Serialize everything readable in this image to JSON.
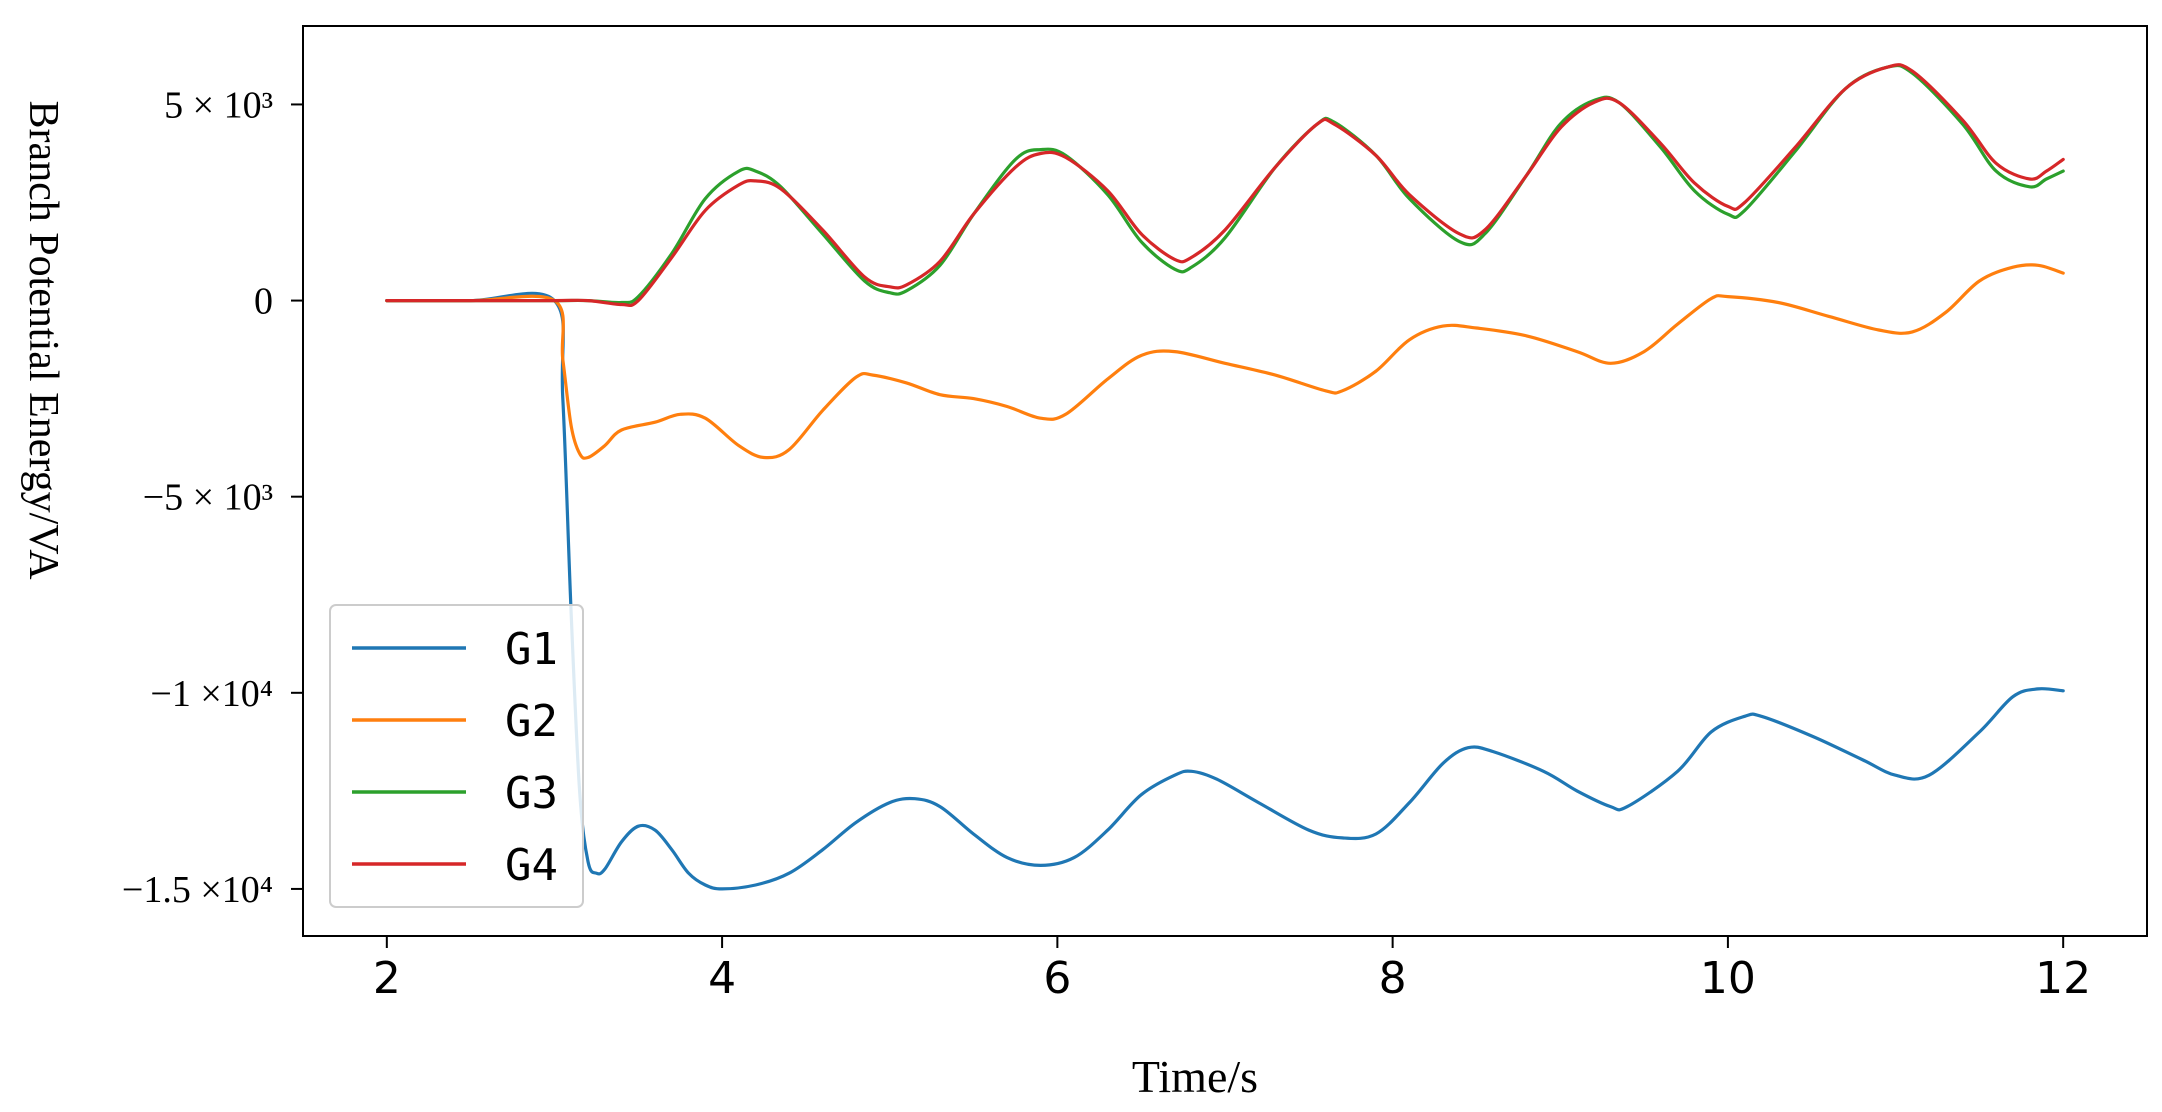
{
  "chart_data": {
    "type": "line",
    "title": "",
    "xlabel": "Time/s",
    "ylabel": "Branch Potential Energy/VA",
    "xlim": [
      1.5,
      12.5
    ],
    "ylim": [
      -16200,
      7000
    ],
    "xticks": [
      {
        "value": 2,
        "label": "2"
      },
      {
        "value": 4,
        "label": "4"
      },
      {
        "value": 6,
        "label": "6"
      },
      {
        "value": 8,
        "label": "8"
      },
      {
        "value": 10,
        "label": "10"
      },
      {
        "value": 12,
        "label": "12"
      }
    ],
    "yticks": [
      {
        "value": 5000,
        "label": "5 × 10³"
      },
      {
        "value": 0,
        "label": "0"
      },
      {
        "value": -5000,
        "label": "−5 × 10³"
      },
      {
        "value": -10000,
        "label": "−1 ×10⁴"
      },
      {
        "value": -15000,
        "label": "−1.5 ×10⁴"
      }
    ],
    "grid": false,
    "legend_position": "bottom-left",
    "series": [
      {
        "name": "G1",
        "color": "#1f77b4",
        "points": [
          [
            2.0,
            0
          ],
          [
            2.5,
            0
          ],
          [
            3.0,
            0
          ],
          [
            3.05,
            -2500
          ],
          [
            3.1,
            -8000
          ],
          [
            3.15,
            -12500
          ],
          [
            3.2,
            -14300
          ],
          [
            3.25,
            -14600
          ],
          [
            3.3,
            -14500
          ],
          [
            3.4,
            -13800
          ],
          [
            3.5,
            -13400
          ],
          [
            3.6,
            -13500
          ],
          [
            3.7,
            -14000
          ],
          [
            3.8,
            -14600
          ],
          [
            3.9,
            -14900
          ],
          [
            4.0,
            -15000
          ],
          [
            4.2,
            -14900
          ],
          [
            4.4,
            -14600
          ],
          [
            4.6,
            -14000
          ],
          [
            4.8,
            -13300
          ],
          [
            5.0,
            -12800
          ],
          [
            5.15,
            -12700
          ],
          [
            5.3,
            -12900
          ],
          [
            5.5,
            -13600
          ],
          [
            5.7,
            -14200
          ],
          [
            5.9,
            -14400
          ],
          [
            6.1,
            -14200
          ],
          [
            6.3,
            -13500
          ],
          [
            6.5,
            -12600
          ],
          [
            6.7,
            -12100
          ],
          [
            6.8,
            -12000
          ],
          [
            6.95,
            -12200
          ],
          [
            7.2,
            -12800
          ],
          [
            7.5,
            -13500
          ],
          [
            7.7,
            -13700
          ],
          [
            7.9,
            -13600
          ],
          [
            8.1,
            -12800
          ],
          [
            8.3,
            -11800
          ],
          [
            8.45,
            -11400
          ],
          [
            8.6,
            -11500
          ],
          [
            8.9,
            -12000
          ],
          [
            9.1,
            -12500
          ],
          [
            9.3,
            -12900
          ],
          [
            9.4,
            -12900
          ],
          [
            9.7,
            -12000
          ],
          [
            9.9,
            -11000
          ],
          [
            10.1,
            -10600
          ],
          [
            10.2,
            -10600
          ],
          [
            10.5,
            -11100
          ],
          [
            10.8,
            -11700
          ],
          [
            11.0,
            -12100
          ],
          [
            11.2,
            -12100
          ],
          [
            11.5,
            -11000
          ],
          [
            11.7,
            -10100
          ],
          [
            11.85,
            -9900
          ],
          [
            12.0,
            -9950
          ]
        ]
      },
      {
        "name": "G2",
        "color": "#ff7f0e",
        "points": [
          [
            2.0,
            0
          ],
          [
            2.5,
            0
          ],
          [
            3.0,
            0
          ],
          [
            3.05,
            -1500
          ],
          [
            3.1,
            -3200
          ],
          [
            3.15,
            -3900
          ],
          [
            3.2,
            -4000
          ],
          [
            3.3,
            -3700
          ],
          [
            3.4,
            -3300
          ],
          [
            3.6,
            -3100
          ],
          [
            3.75,
            -2900
          ],
          [
            3.9,
            -3000
          ],
          [
            4.1,
            -3700
          ],
          [
            4.25,
            -4000
          ],
          [
            4.4,
            -3800
          ],
          [
            4.6,
            -2800
          ],
          [
            4.8,
            -1950
          ],
          [
            4.9,
            -1900
          ],
          [
            5.1,
            -2100
          ],
          [
            5.3,
            -2400
          ],
          [
            5.5,
            -2500
          ],
          [
            5.7,
            -2700
          ],
          [
            5.9,
            -3000
          ],
          [
            6.05,
            -2900
          ],
          [
            6.3,
            -2000
          ],
          [
            6.5,
            -1400
          ],
          [
            6.7,
            -1300
          ],
          [
            7.0,
            -1600
          ],
          [
            7.3,
            -1900
          ],
          [
            7.6,
            -2300
          ],
          [
            7.7,
            -2300
          ],
          [
            7.9,
            -1800
          ],
          [
            8.1,
            -1000
          ],
          [
            8.3,
            -650
          ],
          [
            8.5,
            -700
          ],
          [
            8.8,
            -900
          ],
          [
            9.1,
            -1300
          ],
          [
            9.3,
            -1600
          ],
          [
            9.5,
            -1300
          ],
          [
            9.7,
            -600
          ],
          [
            9.9,
            50
          ],
          [
            10.0,
            100
          ],
          [
            10.3,
            -50
          ],
          [
            10.6,
            -400
          ],
          [
            10.9,
            -750
          ],
          [
            11.1,
            -800
          ],
          [
            11.3,
            -300
          ],
          [
            11.5,
            500
          ],
          [
            11.7,
            850
          ],
          [
            11.85,
            900
          ],
          [
            12.0,
            700
          ]
        ]
      },
      {
        "name": "G3",
        "color": "#2ca02c",
        "points": [
          [
            2.0,
            0
          ],
          [
            2.5,
            0
          ],
          [
            3.0,
            0
          ],
          [
            3.2,
            0
          ],
          [
            3.4,
            -50
          ],
          [
            3.5,
            100
          ],
          [
            3.7,
            1200
          ],
          [
            3.9,
            2600
          ],
          [
            4.1,
            3300
          ],
          [
            4.2,
            3300
          ],
          [
            4.35,
            2900
          ],
          [
            4.6,
            1700
          ],
          [
            4.85,
            500
          ],
          [
            5.0,
            200
          ],
          [
            5.1,
            250
          ],
          [
            5.3,
            900
          ],
          [
            5.5,
            2200
          ],
          [
            5.75,
            3600
          ],
          [
            5.9,
            3850
          ],
          [
            6.05,
            3700
          ],
          [
            6.3,
            2700
          ],
          [
            6.5,
            1500
          ],
          [
            6.7,
            800
          ],
          [
            6.8,
            850
          ],
          [
            7.0,
            1600
          ],
          [
            7.3,
            3400
          ],
          [
            7.55,
            4500
          ],
          [
            7.65,
            4550
          ],
          [
            7.9,
            3700
          ],
          [
            8.1,
            2600
          ],
          [
            8.4,
            1500
          ],
          [
            8.55,
            1700
          ],
          [
            8.8,
            3200
          ],
          [
            9.0,
            4500
          ],
          [
            9.2,
            5100
          ],
          [
            9.35,
            5050
          ],
          [
            9.6,
            3900
          ],
          [
            9.8,
            2800
          ],
          [
            10.0,
            2200
          ],
          [
            10.1,
            2300
          ],
          [
            10.4,
            3800
          ],
          [
            10.7,
            5400
          ],
          [
            10.95,
            5950
          ],
          [
            11.1,
            5800
          ],
          [
            11.4,
            4500
          ],
          [
            11.6,
            3300
          ],
          [
            11.8,
            2900
          ],
          [
            11.9,
            3100
          ],
          [
            12.0,
            3300
          ]
        ]
      },
      {
        "name": "G4",
        "color": "#d62728",
        "points": [
          [
            2.0,
            0
          ],
          [
            2.5,
            0
          ],
          [
            3.0,
            0
          ],
          [
            3.2,
            0
          ],
          [
            3.4,
            -100
          ],
          [
            3.5,
            0
          ],
          [
            3.7,
            1100
          ],
          [
            3.9,
            2300
          ],
          [
            4.1,
            2950
          ],
          [
            4.2,
            3050
          ],
          [
            4.35,
            2850
          ],
          [
            4.6,
            1800
          ],
          [
            4.85,
            600
          ],
          [
            5.0,
            350
          ],
          [
            5.1,
            400
          ],
          [
            5.3,
            1000
          ],
          [
            5.5,
            2200
          ],
          [
            5.75,
            3400
          ],
          [
            5.9,
            3750
          ],
          [
            6.05,
            3650
          ],
          [
            6.3,
            2800
          ],
          [
            6.5,
            1700
          ],
          [
            6.7,
            1050
          ],
          [
            6.8,
            1100
          ],
          [
            7.0,
            1800
          ],
          [
            7.3,
            3400
          ],
          [
            7.55,
            4500
          ],
          [
            7.65,
            4500
          ],
          [
            7.9,
            3700
          ],
          [
            8.1,
            2700
          ],
          [
            8.4,
            1700
          ],
          [
            8.55,
            1800
          ],
          [
            8.8,
            3200
          ],
          [
            9.0,
            4400
          ],
          [
            9.2,
            5050
          ],
          [
            9.35,
            5050
          ],
          [
            9.6,
            4000
          ],
          [
            9.8,
            3000
          ],
          [
            10.0,
            2400
          ],
          [
            10.1,
            2500
          ],
          [
            10.4,
            3900
          ],
          [
            10.7,
            5400
          ],
          [
            10.95,
            5950
          ],
          [
            11.1,
            5850
          ],
          [
            11.4,
            4600
          ],
          [
            11.6,
            3500
          ],
          [
            11.8,
            3100
          ],
          [
            11.9,
            3300
          ],
          [
            12.0,
            3600
          ]
        ]
      }
    ]
  }
}
